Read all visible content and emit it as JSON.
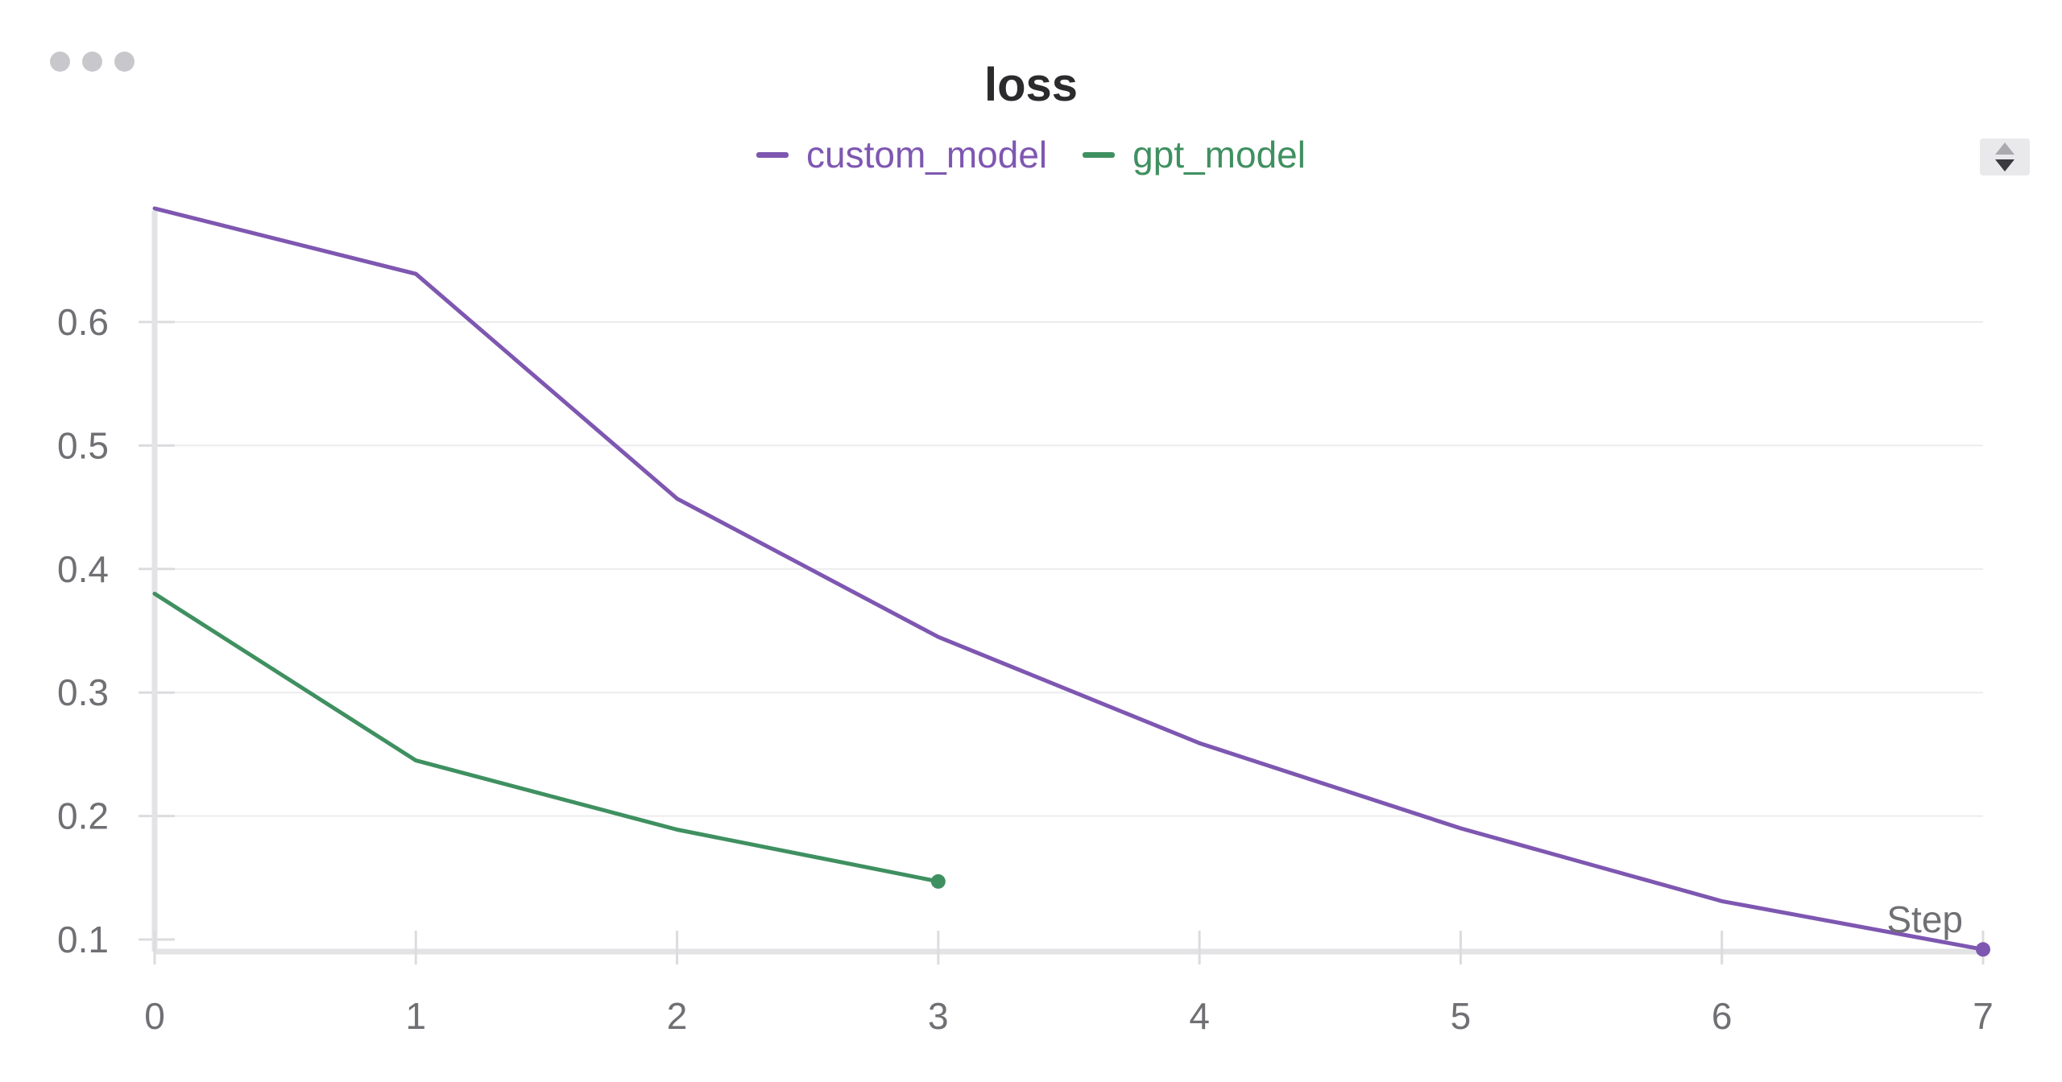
{
  "chart_data": {
    "type": "line",
    "title": "loss",
    "xlabel": "Step",
    "ylabel": "",
    "xlim": [
      0,
      7
    ],
    "ylim": [
      0.09,
      0.7
    ],
    "x_ticks": [
      0,
      1,
      2,
      3,
      4,
      5,
      6,
      7
    ],
    "y_ticks": [
      0.1,
      0.2,
      0.3,
      0.4,
      0.5,
      0.6
    ],
    "x_tick_labels": [
      "0",
      "1",
      "2",
      "3",
      "4",
      "5",
      "6",
      "7"
    ],
    "y_tick_labels": [
      "0.1",
      "0.2",
      "0.3",
      "0.4",
      "0.5",
      "0.6"
    ],
    "grid": true,
    "legend_position": "top-center",
    "series": [
      {
        "name": "custom_model",
        "color": "#7e57b1",
        "x": [
          0,
          1,
          2,
          3,
          4,
          5,
          6,
          7
        ],
        "values": [
          0.692,
          0.639,
          0.457,
          0.345,
          0.259,
          0.19,
          0.131,
          0.092
        ]
      },
      {
        "name": "gpt_model",
        "color": "#3f9060",
        "x": [
          0,
          1,
          2,
          3
        ],
        "values": [
          0.38,
          0.245,
          0.189,
          0.147
        ]
      }
    ]
  }
}
